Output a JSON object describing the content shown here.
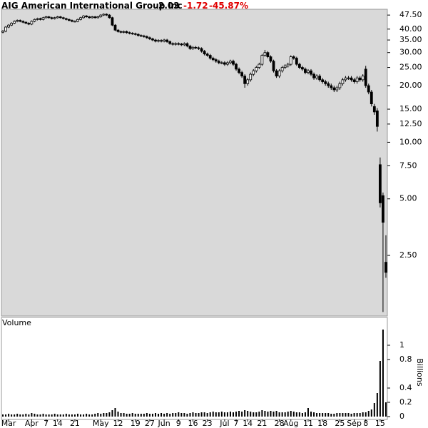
{
  "chart_data": [
    {
      "type": "candlestick",
      "title": "AIG American International Group Inc",
      "last": 2.03,
      "change": -1.72,
      "change_pct": "-45.87%",
      "log": true,
      "ylim": [
        1.19,
        51
      ],
      "color": "#000000",
      "background": "#d9d9d9",
      "yticks": [
        {
          "value": 47.5,
          "label": "47.50"
        },
        {
          "value": 40,
          "label": "40.00"
        },
        {
          "value": 35,
          "label": "35.00"
        },
        {
          "value": 30,
          "label": "30.00"
        },
        {
          "value": 25,
          "label": "25.00"
        },
        {
          "value": 20,
          "label": "20.00"
        },
        {
          "value": 15,
          "label": "15.00"
        },
        {
          "value": 12.5,
          "label": "12.50"
        },
        {
          "value": 10,
          "label": "10.00"
        },
        {
          "value": 7.5,
          "label": "7.50"
        },
        {
          "value": 5,
          "label": "5.00"
        },
        {
          "value": 2.5,
          "label": "2.50"
        }
      ],
      "open": [
        38.5,
        39,
        41,
        42,
        43,
        44,
        44.5,
        44,
        43.5,
        43,
        42.5,
        44,
        45,
        45.5,
        45,
        46,
        46.5,
        46,
        45.5,
        46,
        46.5,
        46,
        45.5,
        45,
        44.5,
        44,
        44,
        45,
        46,
        47,
        46.5,
        46,
        46.5,
        46,
        46.5,
        47.5,
        48,
        47.5,
        46,
        42,
        39.5,
        38.8,
        38.5,
        38.8,
        38.3,
        38,
        37.8,
        37.5,
        37,
        36.8,
        36.5,
        36,
        35.5,
        35,
        34.5,
        34.8,
        34.5,
        35,
        34.3,
        33.5,
        33.2,
        33.5,
        33.3,
        33,
        33.5,
        32.5,
        31.5,
        32,
        31.8,
        31.5,
        30.5,
        29.5,
        29,
        28,
        27.5,
        27,
        26.5,
        26.5,
        26,
        26.5,
        27,
        26,
        24.5,
        23.5,
        22.5,
        20.5,
        21.5,
        23,
        24,
        25,
        26,
        29,
        30,
        28.5,
        27,
        24,
        22.5,
        24,
        25,
        25.5,
        26,
        28.5,
        28,
        26,
        25,
        24.5,
        23.5,
        24,
        23,
        22,
        22.5,
        21.5,
        21,
        20.5,
        20,
        19.5,
        19,
        19.5,
        20.5,
        21.5,
        22,
        22,
        21.5,
        21,
        22,
        21.5,
        24.5,
        20,
        18.5,
        15.5,
        14.7,
        7.6,
        5.2,
        2.3
      ],
      "high": [
        39.5,
        41.5,
        42.5,
        43.5,
        44.5,
        45,
        45,
        44.5,
        44,
        43.5,
        44.5,
        45.5,
        46,
        46,
        46.5,
        47,
        47,
        46.5,
        46.5,
        47,
        47,
        46.5,
        46,
        45.5,
        45,
        44.5,
        45.5,
        46.5,
        47.5,
        47.5,
        47,
        47,
        47,
        47,
        48,
        48.5,
        48.5,
        48,
        46.5,
        42.5,
        40,
        39.3,
        39.3,
        39.3,
        38.8,
        38.5,
        38.3,
        38,
        37.5,
        37.3,
        37,
        36.5,
        36,
        35.5,
        35.3,
        35.3,
        35.5,
        35.5,
        34.8,
        34,
        34,
        34,
        33.8,
        34,
        34,
        33,
        32.5,
        32.5,
        32.3,
        32,
        31,
        30,
        29.5,
        28.5,
        28,
        27.5,
        27,
        27,
        27,
        27.5,
        27.5,
        26.5,
        25,
        24,
        23,
        22,
        23.5,
        24.5,
        25.5,
        26.5,
        29.5,
        31,
        30.5,
        29,
        27.5,
        24.5,
        24.5,
        25.5,
        26,
        26.5,
        29,
        29,
        28.5,
        26.5,
        25.5,
        25,
        24.5,
        24.5,
        23.5,
        23,
        23,
        22,
        21.5,
        21,
        20.5,
        20,
        20,
        21,
        22,
        22.5,
        22.5,
        22.5,
        22,
        22.5,
        22.5,
        23,
        25.5,
        20.5,
        19,
        16,
        15.2,
        8.3,
        5.4,
        3.2
      ],
      "low": [
        38,
        38.5,
        40.5,
        41.5,
        42.5,
        43.5,
        43.5,
        43,
        42.5,
        42,
        42,
        43.5,
        44.5,
        44.5,
        44.5,
        45.5,
        45.5,
        45,
        45,
        45.5,
        45.5,
        45,
        44.5,
        44,
        43.5,
        43.5,
        43.5,
        44.5,
        45.5,
        46,
        45.5,
        45.5,
        45.5,
        45.5,
        46,
        47,
        47,
        45.5,
        41.5,
        39,
        38.3,
        38,
        38,
        37.8,
        37.5,
        37.3,
        37,
        36.5,
        36.3,
        36,
        35.5,
        35,
        34.5,
        34,
        34,
        34,
        34,
        33.8,
        33,
        32.7,
        32.7,
        32.8,
        32.5,
        32.5,
        32,
        31,
        31,
        31.3,
        31,
        30,
        29,
        28.5,
        27.5,
        27,
        26.5,
        26,
        26,
        25.5,
        25.5,
        26,
        25.5,
        24,
        23,
        22,
        19.5,
        20,
        21,
        22.5,
        23.5,
        24.5,
        25.5,
        28.5,
        28,
        26.5,
        23.5,
        22,
        22,
        23.5,
        24.5,
        25,
        25.5,
        27.5,
        25.5,
        24.5,
        24,
        23,
        23,
        22.5,
        21.5,
        21.5,
        21,
        20.5,
        20,
        19.5,
        19,
        18.5,
        18.5,
        19,
        20,
        21,
        21.5,
        21,
        20.5,
        20.5,
        21,
        21,
        19.5,
        18,
        15.5,
        14,
        11.4,
        4.5,
        1.25,
        1.9
      ],
      "close": [
        39,
        41,
        42,
        43,
        44,
        44.5,
        44,
        43.5,
        43,
        42.5,
        44,
        45,
        45.5,
        45,
        46,
        46.5,
        46,
        45.5,
        46,
        46.5,
        46,
        45.5,
        45,
        44.5,
        44,
        44,
        45,
        46,
        47,
        46.5,
        46,
        46.5,
        46,
        46.5,
        47.5,
        48,
        47.5,
        46,
        42,
        39.5,
        38.8,
        38.5,
        38.8,
        38.3,
        38,
        37.8,
        37.5,
        37,
        36.8,
        36.5,
        36,
        35.5,
        35,
        34.5,
        34.8,
        34.5,
        35,
        34.3,
        33.5,
        33.2,
        33.5,
        33.3,
        33,
        33.5,
        32.5,
        31.5,
        32,
        31.8,
        31.5,
        30.5,
        29.5,
        29,
        28,
        27.5,
        27,
        26.5,
        26.5,
        26,
        26.5,
        27,
        26,
        24.5,
        23.5,
        22.5,
        20.5,
        21.5,
        23,
        24,
        25,
        26,
        29,
        30,
        28.5,
        27,
        24,
        22.5,
        24,
        25,
        25.5,
        26,
        28.5,
        28,
        26,
        25,
        24.5,
        23.5,
        24,
        23,
        22,
        22.5,
        21.5,
        21,
        20.5,
        20,
        19.5,
        19,
        19.5,
        20.5,
        21.5,
        22,
        22,
        21.5,
        21,
        22,
        21.5,
        22.5,
        20,
        18.5,
        16,
        14.5,
        12.14,
        4.76,
        3.75,
        2.03
      ]
    },
    {
      "type": "bar",
      "label": "Volume",
      "axis_label": "Billions",
      "color": "#000000",
      "ylim": [
        0,
        1.26
      ],
      "yticks": [
        0,
        0.2,
        0.4,
        0.8,
        1
      ],
      "categories": [
        null,
        null,
        "Mar",
        null,
        null,
        null,
        null,
        null,
        null,
        null,
        "Apr",
        null,
        null,
        null,
        null,
        "7",
        null,
        null,
        null,
        "14",
        null,
        null,
        null,
        null,
        null,
        "21",
        null,
        null,
        null,
        null,
        null,
        null,
        null,
        null,
        "May",
        null,
        null,
        null,
        null,
        null,
        "12",
        null,
        null,
        null,
        null,
        null,
        "19",
        null,
        null,
        null,
        null,
        "27",
        null,
        null,
        null,
        null,
        "Jun",
        null,
        null,
        null,
        null,
        "9",
        null,
        null,
        null,
        null,
        "16",
        null,
        null,
        null,
        null,
        "23",
        null,
        null,
        null,
        null,
        null,
        "Jul",
        null,
        null,
        null,
        "7",
        null,
        null,
        null,
        "14",
        null,
        null,
        null,
        null,
        "21",
        null,
        null,
        null,
        null,
        null,
        "28",
        null,
        null,
        null,
        "Aug",
        null,
        null,
        null,
        null,
        null,
        "11",
        null,
        null,
        null,
        null,
        "18",
        null,
        null,
        null,
        null,
        null,
        "25",
        null,
        null,
        null,
        null,
        "Sep",
        null,
        null,
        null,
        "8",
        null,
        null,
        null,
        null,
        "15",
        null,
        null
      ],
      "values": [
        0.03,
        0.03,
        0.04,
        0.03,
        0.03,
        0.04,
        0.03,
        0.03,
        0.04,
        0.03,
        0.05,
        0.04,
        0.03,
        0.03,
        0.04,
        0.03,
        0.03,
        0.03,
        0.04,
        0.03,
        0.03,
        0.03,
        0.04,
        0.03,
        0.03,
        0.03,
        0.04,
        0.03,
        0.03,
        0.04,
        0.03,
        0.03,
        0.04,
        0.05,
        0.04,
        0.05,
        0.05,
        0.06,
        0.09,
        0.12,
        0.07,
        0.05,
        0.05,
        0.04,
        0.04,
        0.05,
        0.04,
        0.04,
        0.04,
        0.04,
        0.05,
        0.04,
        0.04,
        0.05,
        0.04,
        0.05,
        0.04,
        0.05,
        0.04,
        0.05,
        0.05,
        0.06,
        0.05,
        0.05,
        0.04,
        0.05,
        0.06,
        0.05,
        0.05,
        0.06,
        0.06,
        0.05,
        0.06,
        0.07,
        0.06,
        0.06,
        0.07,
        0.06,
        0.06,
        0.07,
        0.06,
        0.07,
        0.08,
        0.07,
        0.09,
        0.08,
        0.07,
        0.06,
        0.06,
        0.07,
        0.09,
        0.08,
        0.07,
        0.08,
        0.07,
        0.08,
        0.06,
        0.06,
        0.06,
        0.07,
        0.08,
        0.07,
        0.06,
        0.06,
        0.05,
        0.06,
        0.12,
        0.07,
        0.06,
        0.05,
        0.05,
        0.05,
        0.05,
        0.05,
        0.04,
        0.04,
        0.05,
        0.05,
        0.05,
        0.05,
        0.05,
        0.04,
        0.05,
        0.05,
        0.05,
        0.06,
        0.06,
        0.08,
        0.1,
        0.19,
        0.33,
        0.78,
        1.22,
        0.2
      ]
    }
  ]
}
